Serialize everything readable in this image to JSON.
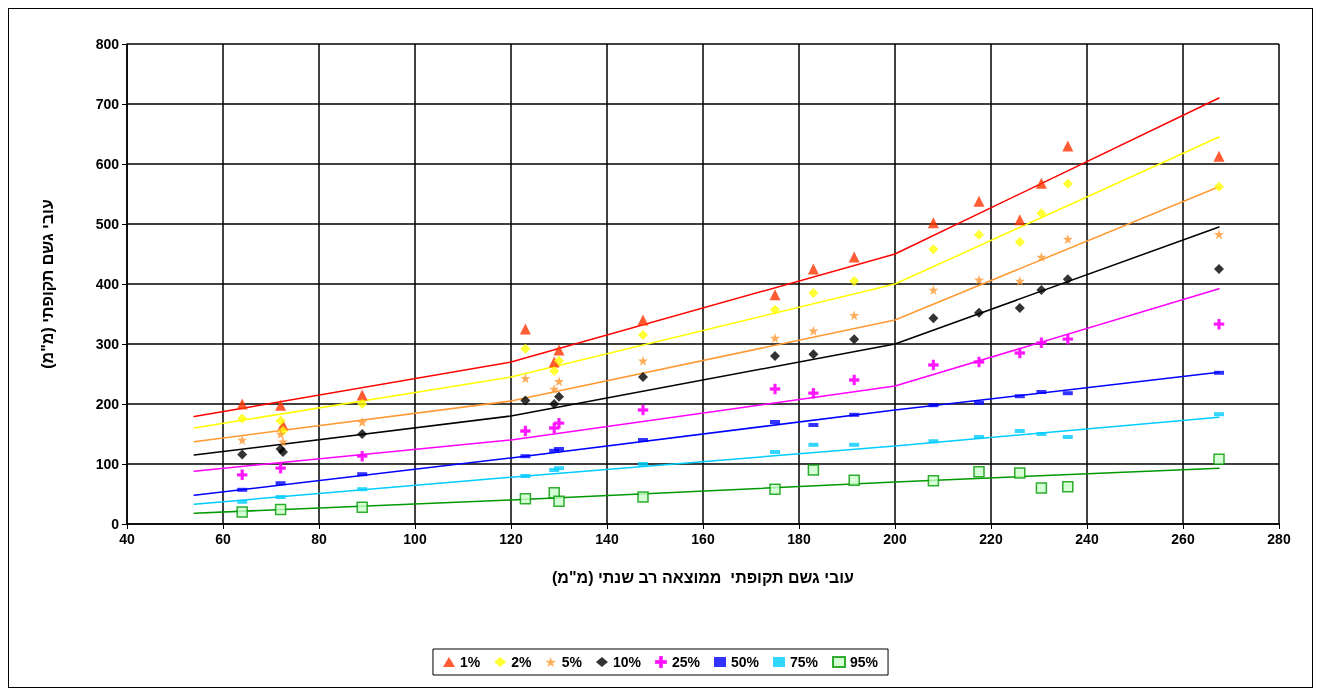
{
  "chart_data": {
    "type": "scatter",
    "xlabel": "עובי גשם תקופתי  ממוצאה רב שנתי (מ\"מ)",
    "ylabel": "עובי גשם תקופתי (מ\"מ)",
    "x": [
      64,
      72,
      72.5,
      89,
      123,
      129,
      130,
      147.5,
      175,
      183,
      191.5,
      208,
      217.5,
      226,
      230.5,
      236,
      267.5
    ],
    "series": [
      {
        "name": "1%",
        "color": "#ff3300",
        "marker": "triangle",
        "values": [
          200,
          198,
          165,
          215,
          325,
          270,
          290,
          340,
          382,
          425,
          445,
          502,
          538,
          507,
          568,
          630,
          613
        ]
      },
      {
        "name": "2%",
        "color": "#ffff00",
        "marker": "diamond",
        "values": [
          176,
          172,
          155,
          200,
          292,
          255,
          272,
          315,
          357,
          385,
          405,
          458,
          482,
          470,
          518,
          567,
          562
        ]
      },
      {
        "name": "5%",
        "color": "#ff9933",
        "marker": "star",
        "values": [
          140,
          150,
          137,
          170,
          243,
          225,
          238,
          272,
          310,
          322,
          348,
          390,
          407,
          405,
          445,
          475,
          483
        ]
      },
      {
        "name": "10%",
        "color": "#000000",
        "marker": "diamond",
        "values": [
          116,
          125,
          120,
          150,
          206,
          200,
          212,
          245,
          280,
          283,
          308,
          343,
          352,
          360,
          390,
          408,
          425
        ]
      },
      {
        "name": "25%",
        "color": "#ff00ff",
        "marker": "cross",
        "values": [
          82,
          93,
          null,
          113,
          155,
          160,
          168,
          190,
          225,
          218,
          240,
          265,
          270,
          285,
          302,
          308,
          333
        ]
      },
      {
        "name": "50%",
        "color": "#0000ff",
        "marker": "square",
        "values": [
          57,
          68,
          null,
          83,
          113,
          122,
          125,
          140,
          170,
          165,
          182,
          198,
          202,
          213,
          220,
          218,
          252
        ]
      },
      {
        "name": "75%",
        "color": "#00ccff",
        "marker": "square",
        "values": [
          37,
          45,
          null,
          58,
          80,
          90,
          93,
          100,
          120,
          132,
          132,
          138,
          145,
          155,
          150,
          145,
          183
        ]
      },
      {
        "name": "95%",
        "color": "#009900",
        "marker": "square",
        "values": [
          20,
          24,
          null,
          28,
          42,
          52,
          38,
          45,
          58,
          90,
          73,
          72,
          87,
          85,
          60,
          62,
          108
        ]
      },
      {
        "type": "line",
        "color": "#ff0000",
        "x": [
          54,
          120,
          200,
          267.5
        ],
        "values": [
          179,
          270,
          450,
          710
        ]
      },
      {
        "type": "line",
        "color": "#ffff00",
        "x": [
          54,
          120,
          200,
          267.5
        ],
        "values": [
          160,
          245,
          400,
          645
        ]
      },
      {
        "type": "line",
        "color": "#ff9933",
        "x": [
          54,
          120,
          200,
          267.5
        ],
        "values": [
          137,
          205,
          340,
          562
        ]
      },
      {
        "type": "line",
        "color": "#000000",
        "x": [
          54,
          120,
          200,
          267.5
        ],
        "values": [
          115,
          180,
          300,
          495
        ]
      },
      {
        "type": "line",
        "color": "#ff00ff",
        "x": [
          54,
          120,
          200,
          267.5
        ],
        "values": [
          88,
          140,
          230,
          392
        ]
      },
      {
        "type": "line",
        "color": "#0000ff",
        "x": [
          54,
          120,
          200,
          267.5
        ],
        "values": [
          48,
          110,
          190,
          253
        ]
      },
      {
        "type": "line",
        "color": "#00ccff",
        "x": [
          54,
          120,
          200,
          267.5
        ],
        "values": [
          33,
          78,
          130,
          178
        ]
      },
      {
        "type": "line",
        "color": "#009900",
        "x": [
          54,
          120,
          200,
          267.5
        ],
        "values": [
          18,
          40,
          70,
          93
        ]
      }
    ],
    "xlim": [
      40,
      280
    ],
    "xticks": [
      40,
      60,
      80,
      100,
      120,
      140,
      160,
      180,
      200,
      220,
      240,
      260,
      280
    ],
    "ylim": [
      0,
      800
    ],
    "yticks": [
      0,
      100,
      200,
      300,
      400,
      500,
      600,
      700,
      800
    ],
    "grid": true,
    "legend": "bottom",
    "line_style": "solid"
  }
}
